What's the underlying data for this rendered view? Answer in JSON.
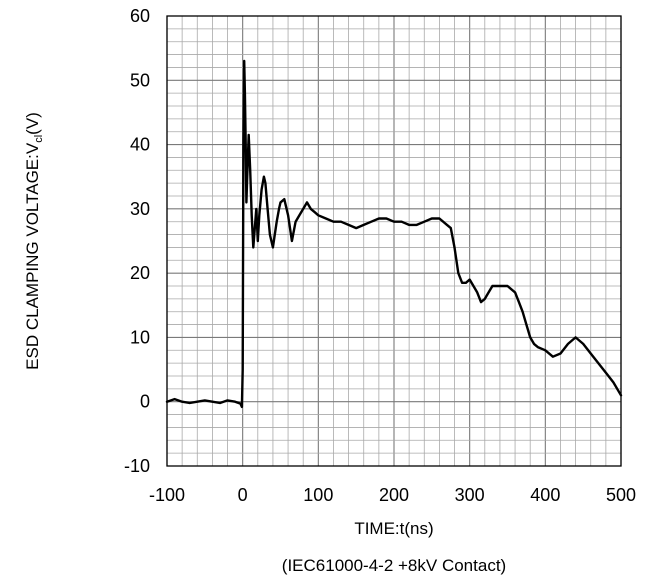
{
  "chart_data": {
    "type": "line",
    "xlabel": "TIME:t(ns)",
    "caption": "(IEC61000-4-2 +8kV Contact)",
    "ylabel_main": "ESD CLAMPING VOLTAGE:V",
    "ylabel_sub": "cl",
    "ylabel_tail": "(V)",
    "xlim": [
      -100,
      500
    ],
    "ylim": [
      -10,
      60
    ],
    "x_ticks": [
      -100,
      0,
      100,
      200,
      300,
      400,
      500
    ],
    "y_ticks": [
      -10,
      0,
      10,
      20,
      30,
      40,
      50,
      60
    ],
    "x_tick_labels": [
      "-100",
      "0",
      "100",
      "200",
      "300",
      "400",
      "500"
    ],
    "y_tick_labels": [
      "-10",
      "0",
      "10",
      "20",
      "30",
      "40",
      "50",
      "60"
    ],
    "grid": true,
    "line_color": "#000000",
    "series": [
      {
        "x": [
          -100,
          -90,
          -80,
          -70,
          -60,
          -50,
          -40,
          -30,
          -20,
          -10,
          -3,
          -1,
          0,
          0.5,
          1,
          2,
          3,
          4,
          5,
          6,
          8,
          10,
          12,
          14,
          16,
          18,
          20,
          22,
          25,
          28,
          30,
          33,
          36,
          40,
          45,
          48,
          50,
          55,
          60,
          65,
          70,
          75,
          80,
          85,
          90,
          95,
          100,
          110,
          120,
          130,
          140,
          150,
          160,
          170,
          180,
          190,
          200,
          210,
          220,
          230,
          240,
          250,
          260,
          270,
          275,
          280,
          285,
          290,
          295,
          300,
          310,
          315,
          320,
          325,
          330,
          340,
          350,
          360,
          365,
          370,
          375,
          380,
          385,
          390,
          400,
          410,
          420,
          430,
          440,
          450,
          460,
          470,
          480,
          490,
          500
        ],
        "y": [
          0,
          0.4,
          0,
          -0.2,
          0,
          0.2,
          0,
          -0.2,
          0.2,
          0,
          -0.3,
          -0.8,
          5,
          20,
          40,
          53,
          48,
          40,
          31,
          35,
          41.5,
          36,
          29,
          24,
          27,
          30,
          25,
          29,
          33,
          35,
          34,
          30,
          26,
          24,
          28,
          30,
          31,
          31.5,
          29,
          25,
          28,
          29,
          30,
          31,
          30,
          29.5,
          29,
          28.5,
          28,
          28,
          27.5,
          27,
          27.5,
          28,
          28.5,
          28.5,
          28,
          28,
          27.5,
          27.5,
          28,
          28.5,
          28.5,
          27.5,
          27,
          24,
          20,
          18.5,
          18.5,
          19,
          17,
          15.5,
          16,
          17,
          18,
          18,
          18,
          17,
          15.5,
          14,
          12,
          10,
          9,
          8.5,
          8,
          7,
          7.5,
          9,
          10,
          9,
          7.5,
          6,
          4.5,
          3,
          1
        ]
      }
    ]
  }
}
